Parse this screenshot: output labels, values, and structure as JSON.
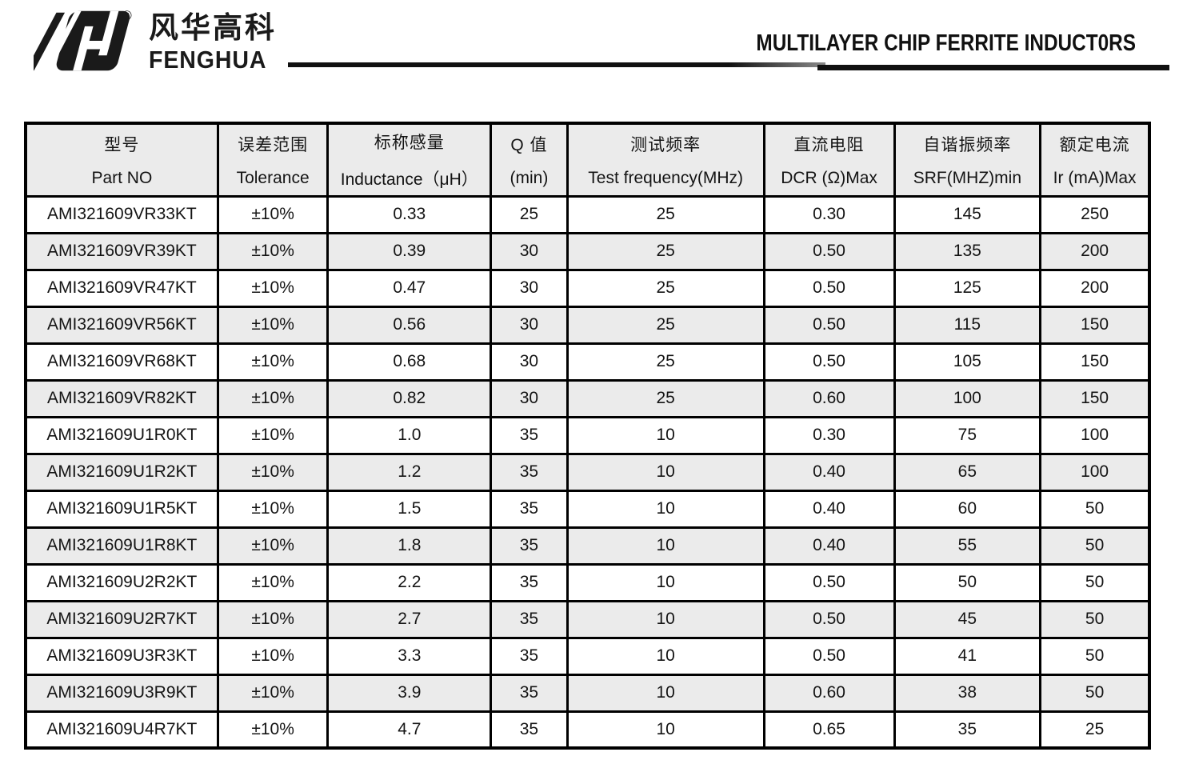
{
  "brand": {
    "name_cn": "风华高科",
    "name_en": "FENGHUA",
    "registered_mark": "®"
  },
  "header": {
    "title": "MULTILAYER CHIP FERRITE INDUCT0RS"
  },
  "colors": {
    "ink": "#111111",
    "row_stripe": "#ebebeb",
    "table_border": "#000000"
  },
  "table": {
    "columns": [
      {
        "cn": "型号",
        "en": "Part NO"
      },
      {
        "cn": "误差范围",
        "en": "Tolerance"
      },
      {
        "cn": "标称感量",
        "en": "Inductance（μH）"
      },
      {
        "cn": "Q 值",
        "en": "(min)"
      },
      {
        "cn": "测试频率",
        "en": "Test frequency(MHz)"
      },
      {
        "cn": "直流电阻",
        "en": "DCR (Ω)Max"
      },
      {
        "cn": "自谐振频率",
        "en": "SRF(MHZ)min"
      },
      {
        "cn": "额定电流",
        "en": "Ir (mA)Max"
      }
    ],
    "rows": [
      [
        "AMI321609VR33KT",
        "±10%",
        "0.33",
        "25",
        "25",
        "0.30",
        "145",
        "250"
      ],
      [
        "AMI321609VR39KT",
        "±10%",
        "0.39",
        "30",
        "25",
        "0.50",
        "135",
        "200"
      ],
      [
        "AMI321609VR47KT",
        "±10%",
        "0.47",
        "30",
        "25",
        "0.50",
        "125",
        "200"
      ],
      [
        "AMI321609VR56KT",
        "±10%",
        "0.56",
        "30",
        "25",
        "0.50",
        "115",
        "150"
      ],
      [
        "AMI321609VR68KT",
        "±10%",
        "0.68",
        "30",
        "25",
        "0.50",
        "105",
        "150"
      ],
      [
        "AMI321609VR82KT",
        "±10%",
        "0.82",
        "30",
        "25",
        "0.60",
        "100",
        "150"
      ],
      [
        "AMI321609U1R0KT",
        "±10%",
        "1.0",
        "35",
        "10",
        "0.30",
        "75",
        "100"
      ],
      [
        "AMI321609U1R2KT",
        "±10%",
        "1.2",
        "35",
        "10",
        "0.40",
        "65",
        "100"
      ],
      [
        "AMI321609U1R5KT",
        "±10%",
        "1.5",
        "35",
        "10",
        "0.40",
        "60",
        "50"
      ],
      [
        "AMI321609U1R8KT",
        "±10%",
        "1.8",
        "35",
        "10",
        "0.40",
        "55",
        "50"
      ],
      [
        "AMI321609U2R2KT",
        "±10%",
        "2.2",
        "35",
        "10",
        "0.50",
        "50",
        "50"
      ],
      [
        "AMI321609U2R7KT",
        "±10%",
        "2.7",
        "35",
        "10",
        "0.50",
        "45",
        "50"
      ],
      [
        "AMI321609U3R3KT",
        "±10%",
        "3.3",
        "35",
        "10",
        "0.50",
        "41",
        "50"
      ],
      [
        "AMI321609U3R9KT",
        "±10%",
        "3.9",
        "35",
        "10",
        "0.60",
        "38",
        "50"
      ],
      [
        "AMI321609U4R7KT",
        "±10%",
        "4.7",
        "35",
        "10",
        "0.65",
        "35",
        "25"
      ]
    ]
  }
}
